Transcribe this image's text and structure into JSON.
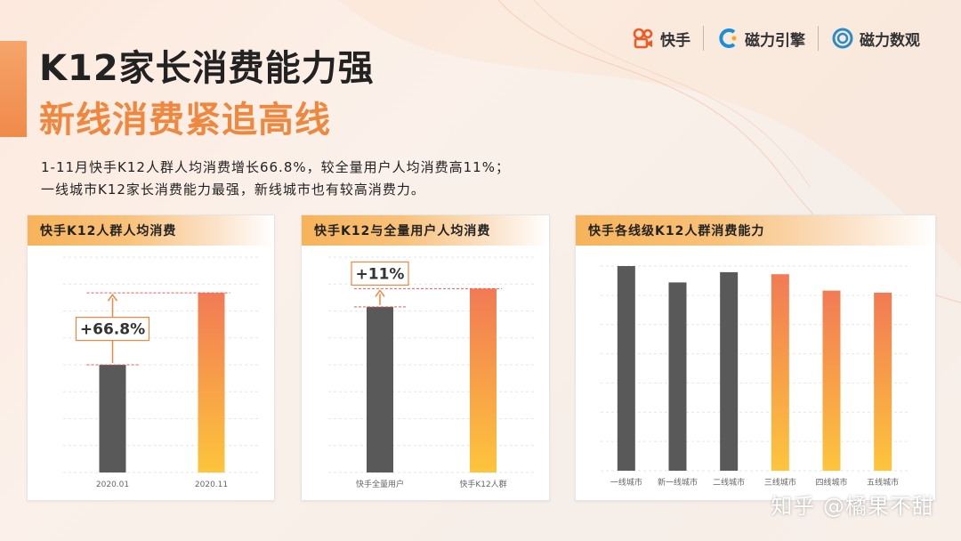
{
  "header": {
    "title_line1": "K12家长消费能力强",
    "title_line2": "新线消费紧追高线",
    "subtitle_line1": "1-11月快手K12人群人均消费增长66.8%，较全量用户人均消费高11%；",
    "subtitle_line2": "一线城市K12家长消费能力最强，新线城市也有较高消费力。"
  },
  "logos": {
    "kuaishou": "快手",
    "cili_engine": "磁力引擎",
    "cili_data": "磁力数观"
  },
  "watermark": "知乎 @橘果不甜",
  "colors": {
    "dark_bar": "#595959",
    "orange_top": "#f27a55",
    "orange_bottom": "#fdc53c",
    "accent": "#f0873f",
    "title_orange": "#f0873f"
  },
  "chart_data": [
    {
      "type": "bar",
      "title": "快手K12人群人均消费",
      "categories": [
        "2020.01",
        "2020.11"
      ],
      "values": [
        100,
        166.8
      ],
      "ylim": [
        0,
        200
      ],
      "grid": true,
      "annotation": "+66.8%"
    },
    {
      "type": "bar",
      "title": "快手K12与全量用户人均消费",
      "categories": [
        "快手全量用户",
        "快手K12人群"
      ],
      "values": [
        100,
        111
      ],
      "ylim": [
        0,
        130
      ],
      "grid": true,
      "annotation": "+11%"
    },
    {
      "type": "bar",
      "title": "快手各线级K12人群消费能力",
      "categories": [
        "一线城市",
        "新一线城市",
        "二线城市",
        "三线城市",
        "四线城市",
        "五线城市"
      ],
      "values": [
        100,
        92,
        97,
        96,
        88,
        87
      ],
      "ylim": [
        0,
        100
      ],
      "grid": true
    }
  ]
}
